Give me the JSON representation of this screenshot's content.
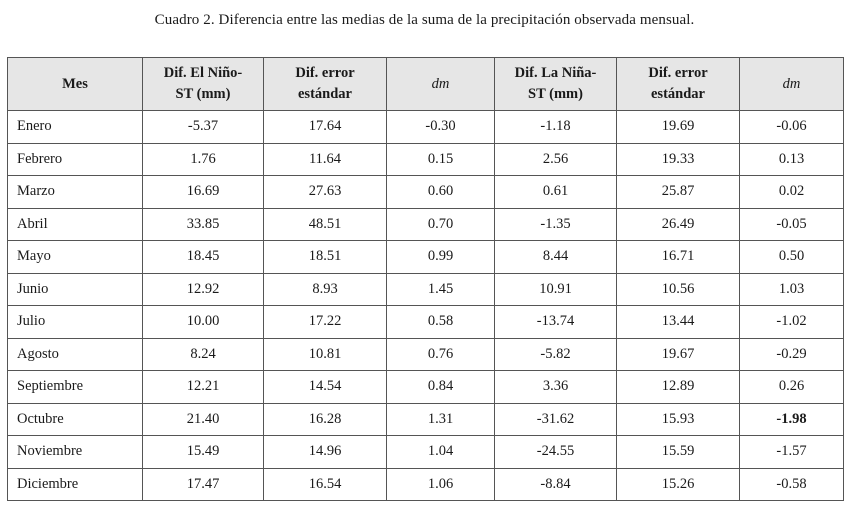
{
  "caption": "Cuadro 2. Diferencia entre las medias de la suma de la precipitación observada mensual.",
  "table": {
    "headers": [
      {
        "line1": "Mes",
        "line2": ""
      },
      {
        "line1": "Dif. El Niño-",
        "line2": "ST (mm)"
      },
      {
        "line1": "Dif. error",
        "line2": "estándar"
      },
      {
        "line1": "dm",
        "line2": ""
      },
      {
        "line1": "Dif. La Niña-",
        "line2": "ST (mm)"
      },
      {
        "line1": "Dif. error",
        "line2": "estándar"
      },
      {
        "line1": "dm",
        "line2": ""
      }
    ],
    "rows": [
      [
        "Enero",
        "-5.37",
        "17.64",
        "-0.30",
        "-1.18",
        "19.69",
        "-0.06"
      ],
      [
        "Febrero",
        "1.76",
        "11.64",
        "0.15",
        "2.56",
        "19.33",
        "0.13"
      ],
      [
        "Marzo",
        "16.69",
        "27.63",
        "0.60",
        "0.61",
        "25.87",
        "0.02"
      ],
      [
        "Abril",
        "33.85",
        "48.51",
        "0.70",
        "-1.35",
        "26.49",
        "-0.05"
      ],
      [
        "Mayo",
        "18.45",
        "18.51",
        "0.99",
        "8.44",
        "16.71",
        "0.50"
      ],
      [
        "Junio",
        "12.92",
        "8.93",
        "1.45",
        "10.91",
        "10.56",
        "1.03"
      ],
      [
        "Julio",
        "10.00",
        "17.22",
        "0.58",
        "-13.74",
        "13.44",
        "-1.02"
      ],
      [
        "Agosto",
        "8.24",
        "10.81",
        "0.76",
        "-5.82",
        "19.67",
        "-0.29"
      ],
      [
        "Septiembre",
        "12.21",
        "14.54",
        "0.84",
        "3.36",
        "12.89",
        "0.26"
      ],
      [
        "Octubre",
        "21.40",
        "16.28",
        "1.31",
        "-31.62",
        "15.93",
        "-1.98"
      ],
      [
        "Noviembre",
        "15.49",
        "14.96",
        "1.04",
        "-24.55",
        "15.59",
        "-1.57"
      ],
      [
        "Diciembre",
        "17.47",
        "16.54",
        "1.06",
        "-8.84",
        "15.26",
        "-0.58"
      ]
    ]
  }
}
